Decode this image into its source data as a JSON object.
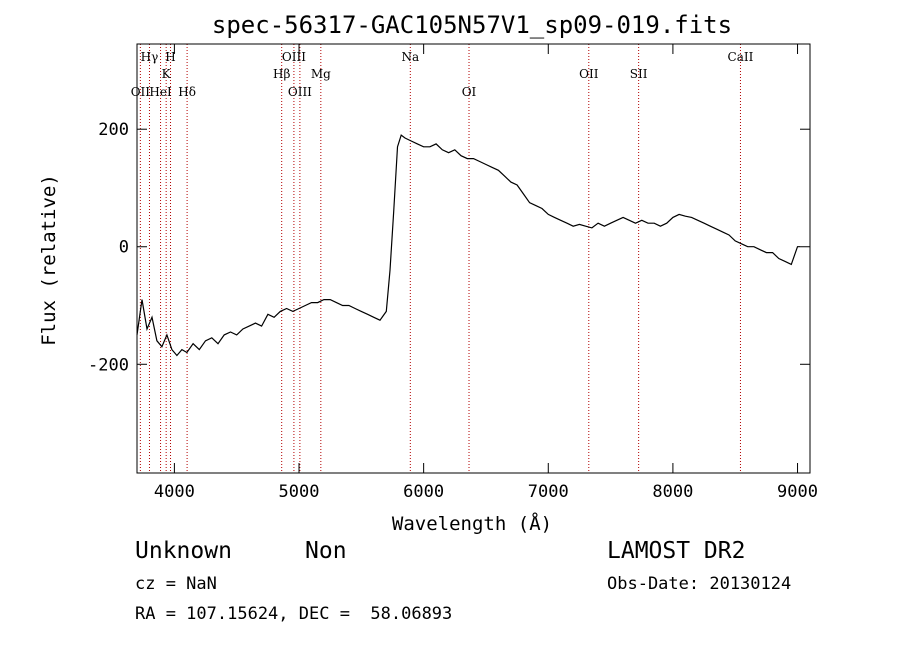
{
  "chart_data": {
    "type": "line",
    "title": "spec-56317-GAC105N57V1_sp09-019.fits",
    "xlabel": "Wavelength (Å)",
    "ylabel": "Flux (relative)",
    "xlim": [
      3700,
      9100
    ],
    "ylim": [
      -385,
      345
    ],
    "xticks": [
      4000,
      5000,
      6000,
      7000,
      8000,
      9000
    ],
    "yticks": [
      -200,
      0,
      200
    ],
    "grid": false,
    "series": [
      {
        "x": [
          3700,
          3740,
          3780,
          3820,
          3860,
          3900,
          3940,
          3980,
          4020,
          4060,
          4100,
          4150,
          4200,
          4250,
          4300,
          4350,
          4400,
          4450,
          4500,
          4550,
          4600,
          4650,
          4700,
          4750,
          4800,
          4850,
          4900,
          4950,
          5000,
          5050,
          5100,
          5150,
          5200,
          5250,
          5300,
          5350,
          5400,
          5450,
          5500,
          5550,
          5600,
          5650,
          5700,
          5730,
          5760,
          5790,
          5820,
          5850,
          5900,
          5950,
          6000,
          6050,
          6100,
          6150,
          6200,
          6250,
          6300,
          6350,
          6400,
          6450,
          6500,
          6550,
          6600,
          6650,
          6700,
          6750,
          6800,
          6850,
          6900,
          6950,
          7000,
          7050,
          7100,
          7150,
          7200,
          7250,
          7300,
          7350,
          7400,
          7450,
          7500,
          7550,
          7600,
          7650,
          7700,
          7750,
          7800,
          7850,
          7900,
          7950,
          8000,
          8050,
          8100,
          8150,
          8200,
          8250,
          8300,
          8350,
          8400,
          8450,
          8500,
          8550,
          8600,
          8650,
          8700,
          8750,
          8800,
          8850,
          8900,
          8950,
          9000,
          9020
        ],
        "y": [
          -150,
          -90,
          -140,
          -120,
          -160,
          -170,
          -150,
          -175,
          -185,
          -175,
          -180,
          -165,
          -175,
          -160,
          -155,
          -165,
          -150,
          -145,
          -150,
          -140,
          -135,
          -130,
          -135,
          -115,
          -120,
          -110,
          -105,
          -110,
          -105,
          -100,
          -95,
          -95,
          -90,
          -90,
          -95,
          -100,
          -100,
          -105,
          -110,
          -115,
          -120,
          -125,
          -110,
          -40,
          60,
          170,
          190,
          185,
          180,
          175,
          170,
          170,
          175,
          165,
          160,
          165,
          155,
          150,
          150,
          145,
          140,
          135,
          130,
          120,
          110,
          105,
          90,
          75,
          70,
          65,
          55,
          50,
          45,
          40,
          35,
          38,
          35,
          32,
          40,
          35,
          40,
          45,
          50,
          45,
          40,
          45,
          40,
          40,
          35,
          40,
          50,
          55,
          52,
          50,
          45,
          40,
          35,
          30,
          25,
          20,
          10,
          5,
          0,
          0,
          -5,
          -10,
          -10,
          -20,
          -25,
          -30,
          0,
          0
        ]
      }
    ],
    "spectral_lines": [
      {
        "label": "OII",
        "x": 3727,
        "row": 3
      },
      {
        "label": "Hγ",
        "x": 3800,
        "row": 1
      },
      {
        "label": "HeI",
        "x": 3889,
        "row": 3
      },
      {
        "label": "K",
        "x": 3934,
        "row": 2
      },
      {
        "label": "H",
        "x": 3969,
        "row": 1
      },
      {
        "label": "Hδ",
        "x": 4102,
        "row": 3
      },
      {
        "label": "Hβ",
        "x": 4861,
        "row": 2
      },
      {
        "label": "OIII",
        "x": 4959,
        "row": 1
      },
      {
        "label": "OIII",
        "x": 5007,
        "row": 3
      },
      {
        "label": "Mg",
        "x": 5175,
        "row": 2
      },
      {
        "label": "Na",
        "x": 5893,
        "row": 1
      },
      {
        "label": "OI",
        "x": 6364,
        "row": 3
      },
      {
        "label": "OII",
        "x": 7325,
        "row": 2
      },
      {
        "label": "SII",
        "x": 7725,
        "row": 2
      },
      {
        "label": "CaII",
        "x": 8542,
        "row": 1
      }
    ],
    "line_color": "#000000",
    "marker_color": "#b30000"
  },
  "info": {
    "object_class": "Unknown",
    "object_subclass": "Non",
    "survey": "LAMOST DR2",
    "cz": "cz = NaN",
    "obs_date": "Obs-Date: 20130124",
    "coords": "RA = 107.15624, DEC =  58.06893"
  }
}
